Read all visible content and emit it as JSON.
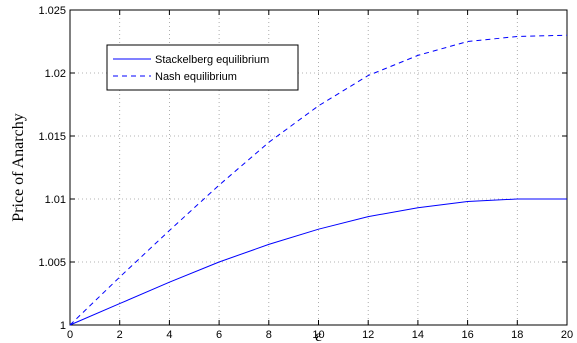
{
  "chart_data": {
    "type": "line",
    "xlabel": "ε",
    "ylabel": "Price of Anarchy",
    "xlim": [
      0,
      20
    ],
    "ylim": [
      1,
      1.025
    ],
    "xticks": [
      "0",
      "2",
      "4",
      "6",
      "8",
      "10",
      "12",
      "14",
      "16",
      "18",
      "20"
    ],
    "yticks": [
      "1",
      "1.005",
      "1.01",
      "1.015",
      "1.02",
      "1.025"
    ],
    "grid": true,
    "legend_position": "top-left",
    "x": [
      0,
      2,
      4,
      6,
      8,
      10,
      12,
      14,
      16,
      18,
      20
    ],
    "series": [
      {
        "name": "Stackelberg equilibrium",
        "style": "solid",
        "color": "#0000ff",
        "values": [
          1.0,
          1.0017,
          1.0034,
          1.005,
          1.0064,
          1.0076,
          1.0086,
          1.0093,
          1.0098,
          1.01,
          1.01
        ]
      },
      {
        "name": "Nash equilibrium",
        "style": "dashed",
        "color": "#0000ff",
        "values": [
          1.0,
          1.0038,
          1.0075,
          1.0111,
          1.0145,
          1.0174,
          1.0198,
          1.0214,
          1.0225,
          1.0229,
          1.023
        ]
      }
    ]
  }
}
